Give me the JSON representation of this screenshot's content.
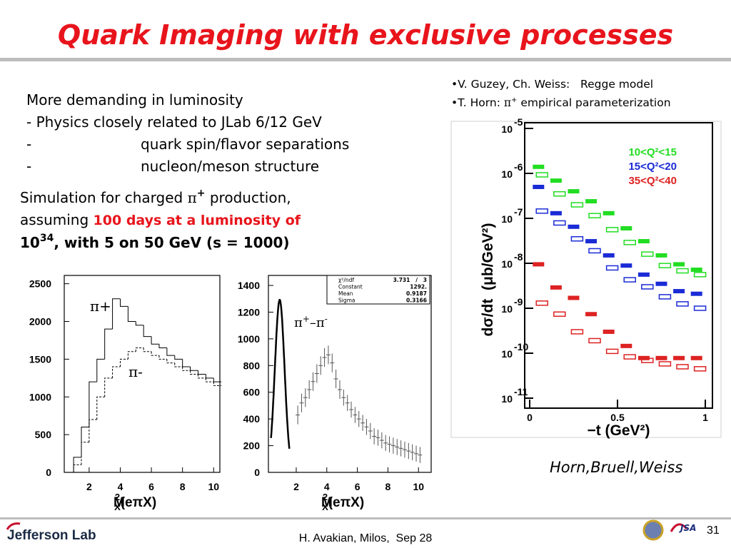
{
  "header": {
    "title": "Quark Imaging with exclusive processes"
  },
  "intro": {
    "lines": [
      {
        "text": "More demanding in luminosity"
      },
      {
        "text": "- Physics closely related to JLab 6/12 GeV"
      },
      {
        "bullet": "-",
        "text": "quark spin/flavor separations"
      },
      {
        "bullet": "-",
        "text": "nucleon/meson structure"
      }
    ]
  },
  "simulation": {
    "parts": [
      "Simulation for charged ",
      "π",
      "+",
      " production,",
      "assuming ",
      "100 days at a luminosity of",
      "10",
      "34",
      ", with 5 on 50 GeV (s = 1000)"
    ]
  },
  "references": [
    {
      "parts": [
        "•V. Guzey, Ch. Weiss:   Regge model"
      ]
    },
    {
      "parts": [
        "•T. Horn: ",
        "π",
        "+",
        " empirical parameterization"
      ]
    }
  ],
  "chart_data": [
    {
      "type": "histogram",
      "bins": [
        0.5,
        1,
        1.5,
        2,
        2.5,
        3,
        3.5,
        4,
        4.5,
        5,
        5.5,
        6,
        6.5,
        7,
        7.5,
        8,
        8.5,
        9,
        9.5,
        10,
        10.5
      ],
      "series": [
        {
          "name": "π+",
          "color": "#000000",
          "dash": false,
          "values": [
            0,
            200,
            600,
            1200,
            1500,
            1900,
            2300,
            2200,
            2000,
            1950,
            1800,
            1700,
            1650,
            1550,
            1500,
            1400,
            1350,
            1300,
            1250,
            1200
          ]
        },
        {
          "name": "π-",
          "color": "#000000",
          "dash": true,
          "values": [
            0,
            100,
            400,
            700,
            1000,
            1250,
            1400,
            1500,
            1600,
            1650,
            1600,
            1550,
            1500,
            1450,
            1400,
            1350,
            1300,
            1250,
            1200,
            1150
          ]
        }
      ],
      "xlim": [
        0.4,
        10.4
      ],
      "xticks": [
        2,
        4,
        6,
        8,
        10
      ],
      "ylim": [
        0,
        2610
      ],
      "yticks": [
        0,
        500,
        1000,
        1500,
        2000,
        2500
      ],
      "xlabel": {
        "main": "M",
        "sub": "X",
        "sup": "2",
        "tail": "(eπX)"
      }
    },
    {
      "type": "errorbar",
      "x": [
        2.1,
        2.35,
        2.6,
        2.85,
        3.1,
        3.35,
        3.6,
        3.85,
        4.1,
        4.35,
        4.6,
        4.85,
        5.1,
        5.35,
        5.6,
        5.85,
        6.1,
        6.35,
        6.6,
        6.85,
        7.1,
        7.35,
        7.6,
        7.85,
        8.1,
        8.35,
        8.6,
        8.85,
        9.1,
        9.35,
        9.6,
        9.85,
        10.1
      ],
      "values": [
        430,
        520,
        560,
        620,
        680,
        740,
        800,
        860,
        880,
        820,
        700,
        620,
        560,
        520,
        470,
        430,
        400,
        370,
        340,
        310,
        270,
        260,
        240,
        220,
        210,
        200,
        190,
        180,
        170,
        160,
        150,
        140,
        130
      ],
      "errors": [
        70,
        70,
        70,
        70,
        70,
        70,
        70,
        70,
        70,
        70,
        70,
        70,
        60,
        60,
        60,
        60,
        60,
        60,
        60,
        60,
        60,
        60,
        60,
        60,
        60,
        60,
        60,
        60,
        60,
        60,
        60,
        60,
        60
      ],
      "annotation": {
        "parts": [
          "π",
          "+",
          "–π",
          "-"
        ]
      },
      "stats": [
        {
          "label": "χ²/ndf",
          "text": "3.731   /   3"
        },
        {
          "label": "Constant",
          "value": 1292,
          "value_label": "1292."
        },
        {
          "label": "Mean",
          "value": 0.9187
        },
        {
          "label": "Sigma",
          "value": 0.3166
        }
      ],
      "fit_range": [
        0.35,
        1.55
      ],
      "xlim": [
        0.18,
        10.83
      ],
      "xticks": [
        2,
        4,
        6,
        8,
        10
      ],
      "ylim": [
        0,
        1475
      ],
      "yticks": [
        0,
        200,
        400,
        600,
        800,
        1000,
        1200,
        1400
      ],
      "xlabel": {
        "main": "M",
        "sub": "X",
        "sup": "2",
        "tail": "(eπX)"
      }
    },
    {
      "type": "scatter",
      "log_y": true,
      "legend": "top-right",
      "series": [
        {
          "name": "10<Q²<15",
          "color": "#22dd22",
          "x": [
            0.05,
            0.15,
            0.25,
            0.35,
            0.45,
            0.55,
            0.65,
            0.75,
            0.85,
            0.95
          ],
          "values": [
            1.4e-06,
            6.9e-07,
            4e-07,
            2.4e-07,
            1.3e-07,
            6e-08,
            3.1e-08,
            1.5e-08,
            9.5e-09,
            7.2e-09
          ],
          "x_open": [
            0.07,
            0.17,
            0.27,
            0.37,
            0.47,
            0.57,
            0.67,
            0.77,
            0.87,
            0.97
          ],
          "open": [
            9.3e-07,
            3.5e-07,
            2e-07,
            1.15e-07,
            5.6e-08,
            2.9e-08,
            1.6e-08,
            8.9e-09,
            6.8e-09,
            5.6e-09
          ]
        },
        {
          "name": "15<Q²<20",
          "color": "#1a2bd6",
          "x": [
            0.05,
            0.15,
            0.25,
            0.35,
            0.45,
            0.55,
            0.65,
            0.75,
            0.85,
            0.95
          ],
          "values": [
            5e-07,
            1.3e-07,
            6.5e-08,
            3.1e-08,
            1.5e-08,
            8.9e-09,
            5.6e-09,
            3.5e-09,
            2.4e-09,
            2.1e-09
          ],
          "x_open": [
            0.07,
            0.17,
            0.27,
            0.37,
            0.47,
            0.57,
            0.67,
            0.77,
            0.87,
            0.97
          ],
          "open": [
            1.45e-07,
            7.9e-08,
            3.5e-08,
            1.9e-08,
            7.9e-09,
            4.3e-09,
            3e-09,
            1.8e-09,
            1.25e-09,
            1e-09
          ]
        },
        {
          "name": "35<Q²<40",
          "color": "#dd2222",
          "x": [
            0.05,
            0.15,
            0.25,
            0.35,
            0.45,
            0.55,
            0.65,
            0.75,
            0.85,
            0.95
          ],
          "values": [
            9.5e-09,
            2.9e-09,
            1.7e-09,
            7.4e-10,
            3e-10,
            1.45e-10,
            7.8e-11,
            7.8e-11,
            7.8e-11,
            7.8e-11
          ],
          "x_open": [
            0.07,
            0.17,
            0.27,
            0.37,
            0.47,
            0.57,
            0.67,
            0.77,
            0.87,
            0.97
          ],
          "open": [
            1.3e-09,
            7.4e-10,
            3e-10,
            1.9e-10,
            1.1e-10,
            8.3e-11,
            6.9e-11,
            5.8e-11,
            5e-11,
            4.5e-11
          ]
        }
      ],
      "xlim": [
        0,
        1
      ],
      "xticks": [
        0,
        0.5,
        1
      ],
      "ylim": [
        1e-11,
        1e-05
      ],
      "yticks": [
        {
          "value": 1e-05,
          "label": "10",
          "sup": "-5"
        },
        {
          "value": 1e-06,
          "label": "10",
          "sup": "-6"
        },
        {
          "value": 1e-07,
          "label": "10",
          "sup": "-7"
        },
        {
          "value": 1e-08,
          "label": "10",
          "sup": "-8"
        },
        {
          "value": 1e-09,
          "label": "10",
          "sup": "-9"
        },
        {
          "value": 1e-10,
          "label": "10",
          "sup": "-10"
        },
        {
          "value": 1e-11,
          "label": "10",
          "sup": "-11"
        }
      ],
      "xlabel": "−t (GeV²)",
      "ylabel": "dσ/dt  (μb/GeV²)"
    }
  ],
  "caption": "Horn,Bruell,Weiss",
  "footer": {
    "logo": "Jefferson Lab",
    "author": "H. Avakian, Milos,  Sep 28",
    "page": "31",
    "partner": "JSA"
  }
}
